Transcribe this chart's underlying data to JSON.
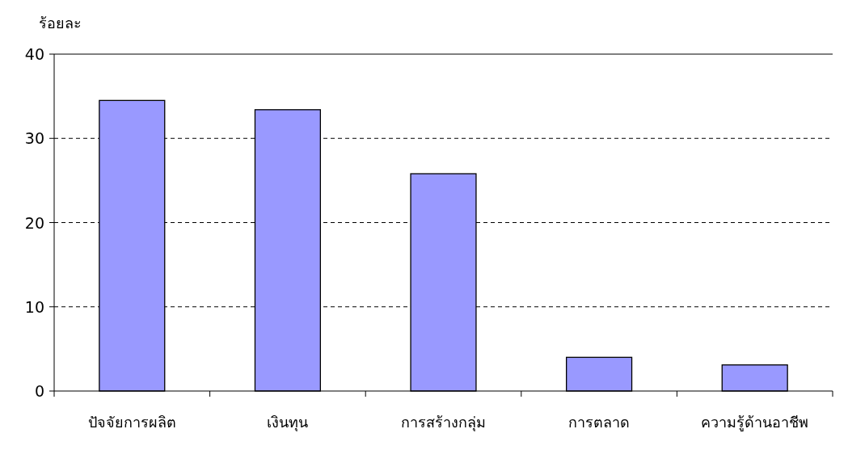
{
  "chart_data": {
    "type": "bar",
    "ylabel": "ร้อยละ",
    "categories": [
      "ปัจจัยการผลิต",
      "เงินทุน",
      "การสร้างกลุ่ม",
      "การตลาด",
      "ความรู้ด้านอาชีพ"
    ],
    "values": [
      34.5,
      33.4,
      25.8,
      4.0,
      3.1
    ],
    "color": "#9999ff",
    "ylim": [
      0,
      40
    ],
    "yticks": [
      0,
      10,
      20,
      30,
      40
    ],
    "grid": "y"
  }
}
